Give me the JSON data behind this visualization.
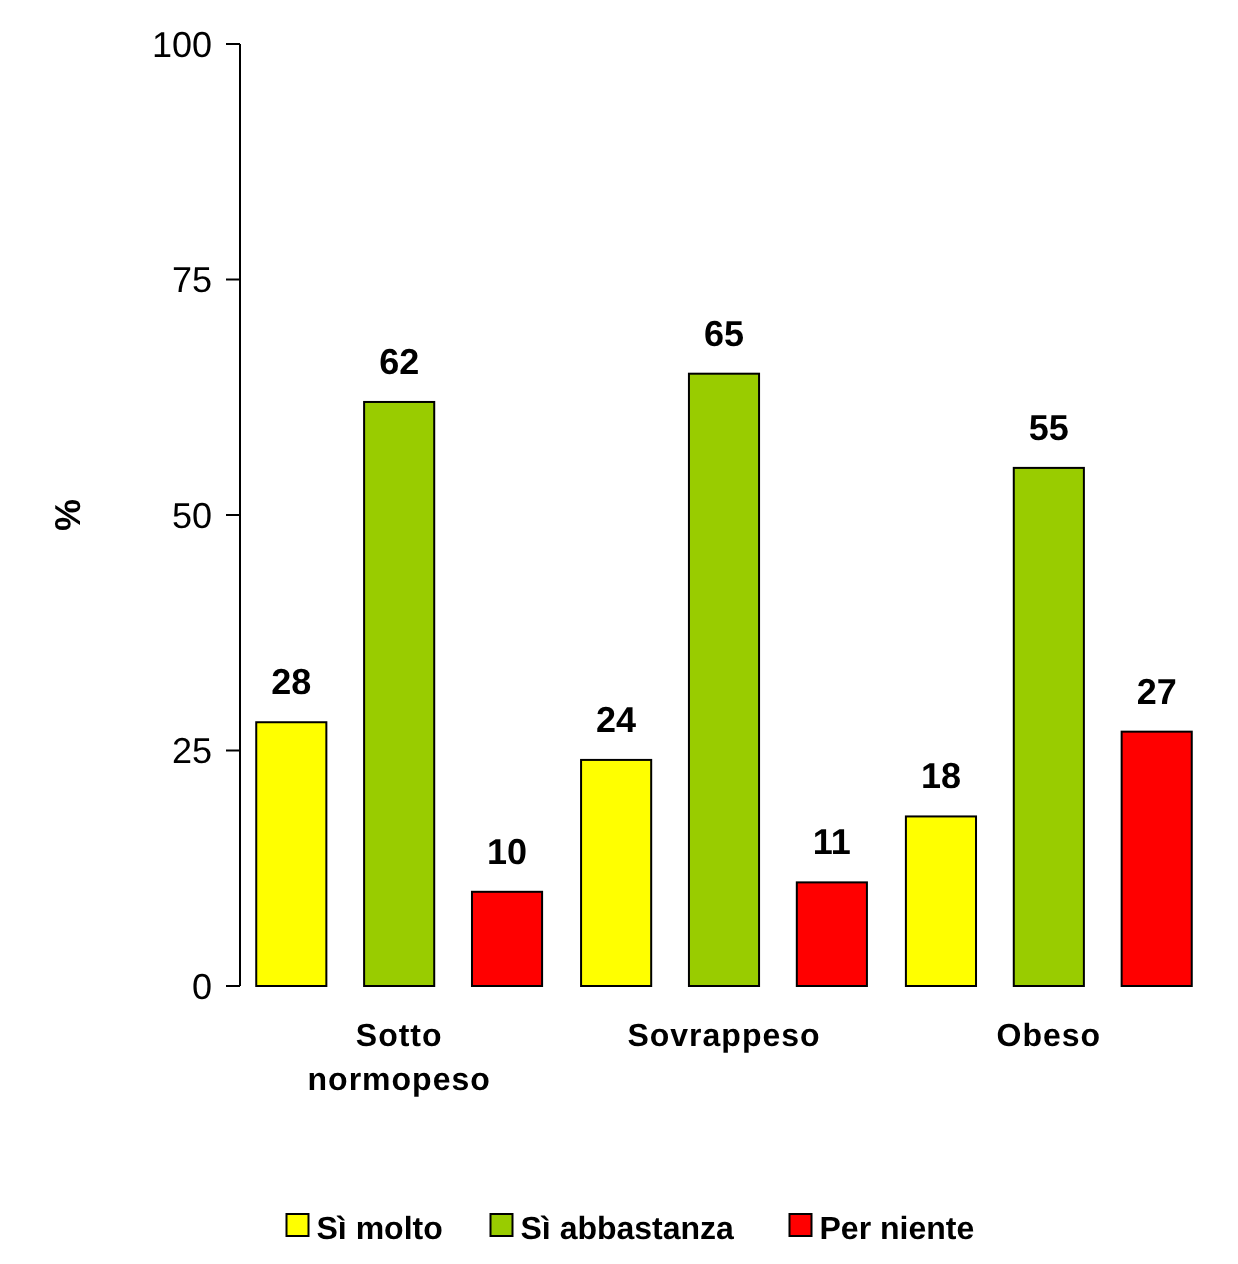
{
  "chart_data": {
    "type": "bar",
    "ylabel": "%",
    "categories": [
      "Sotto normopeso",
      "Sovrappeso",
      "Obeso"
    ],
    "series": [
      {
        "name": "Sì molto",
        "color": "#ffff00",
        "values": [
          28,
          24,
          18
        ]
      },
      {
        "name": "Sì abbastanza",
        "color": "#99cc00",
        "values": [
          62,
          65,
          55
        ]
      },
      {
        "name": "Per niente",
        "color": "#ff0000",
        "values": [
          10,
          11,
          27
        ]
      }
    ],
    "ylim": [
      0,
      100
    ],
    "yticks": [
      0,
      25,
      50,
      75,
      100
    ],
    "data_labels": true,
    "legend": "bottom",
    "grid": false
  }
}
